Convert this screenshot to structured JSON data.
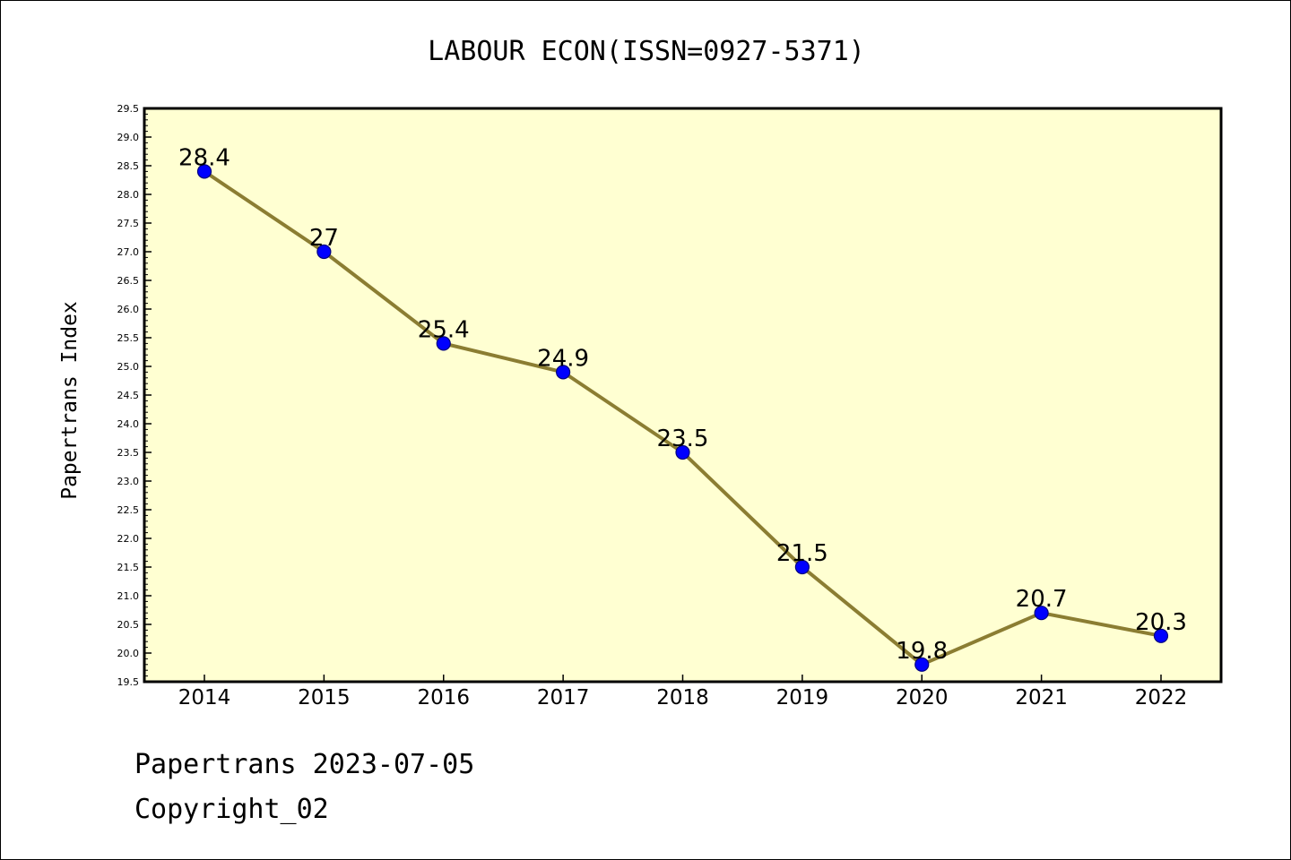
{
  "footer": {
    "line1": "Papertrans 2023-07-05",
    "line2": "Copyright_02"
  },
  "chart_data": {
    "type": "line",
    "title": "LABOUR ECON(ISSN=0927-5371)",
    "xlabel": "",
    "ylabel": "Papertrans Index",
    "categories": [
      "2014",
      "2015",
      "2016",
      "2017",
      "2018",
      "2019",
      "2020",
      "2021",
      "2022"
    ],
    "values": [
      28.4,
      27,
      25.4,
      24.9,
      23.5,
      21.5,
      19.8,
      20.7,
      20.3
    ],
    "data_labels": [
      "28.4",
      "27",
      "25.4",
      "24.9",
      "23.5",
      "21.5",
      "19.8",
      "20.7",
      "20.3"
    ],
    "ylim": [
      19.5,
      29.5
    ],
    "yticks": [
      "19.5",
      "20.0",
      "20.5",
      "21.0",
      "21.5",
      "22.0",
      "22.5",
      "23.0",
      "23.5",
      "24.0",
      "24.5",
      "25.0",
      "25.5",
      "26.0",
      "26.5",
      "27.0",
      "27.5",
      "28.0",
      "28.5",
      "29.0",
      "29.5"
    ],
    "grid": false,
    "legend": "none",
    "colors": {
      "plot_background": "#ffffd2",
      "line": "#8b7d32",
      "marker": "#0000ff",
      "marker_edge": "#000080"
    }
  }
}
